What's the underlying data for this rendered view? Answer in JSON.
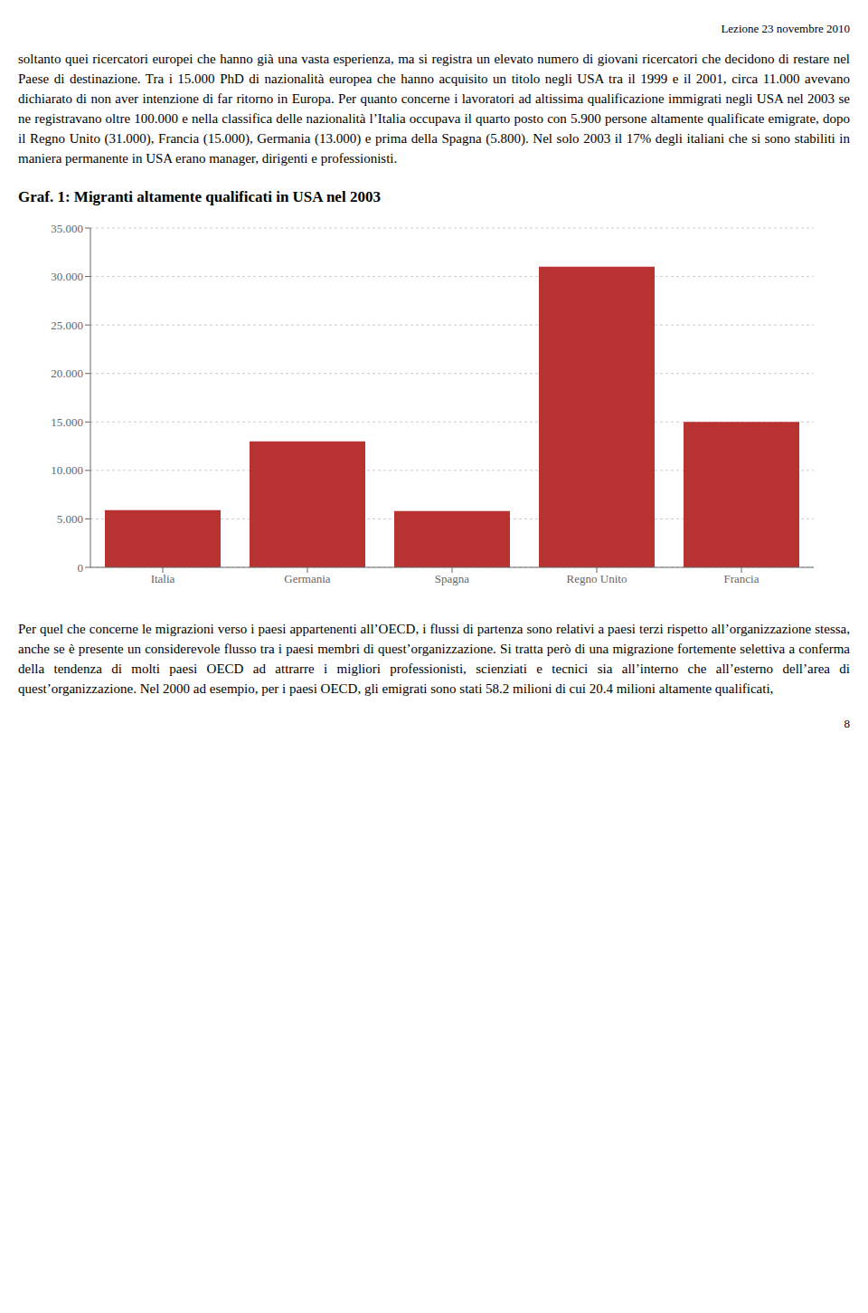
{
  "chart_data": {
    "type": "bar",
    "title": "Graf. 1: Migranti altamente qualificati in USA nel 2003",
    "categories": [
      "Italia",
      "Germania",
      "Spagna",
      "Regno Unito",
      "Francia"
    ],
    "values": [
      5900,
      13000,
      5800,
      31000,
      15000
    ],
    "color": "#b83232",
    "ylim": [
      0,
      35000
    ],
    "yticks": [
      0,
      {
        "value": 5000,
        "label": "5.000"
      },
      {
        "value": 10000,
        "label": "10.000"
      },
      {
        "value": 15000,
        "label": "15.000"
      },
      {
        "value": 20000,
        "label": "20.000"
      },
      {
        "value": 25000,
        "label": "25.000"
      },
      {
        "value": 30000,
        "label": "30.000"
      },
      {
        "value": 35000,
        "label": "35.000"
      }
    ],
    "grid": true,
    "annotations": [
      "Lezione 23 novembre 2010",
      "soltanto quei ricercatori europei che hanno già una vasta esperienza, ma si registra un elevato numero di giovani ricercatori che decidono di restare nel Paese di destinazione. Tra i 15.000 PhD di nazionalità europea che hanno acquisito un titolo negli USA tra il 1999 e il 2001, circa 11.000 avevano dichiarato di non aver intenzione di far ritorno in Europa. Per quanto concerne i lavoratori ad altissima qualificazione immigrati negli USA nel 2003 se ne registravano oltre 100.000 e nella classifica delle nazionalità l’Italia occupava il quarto posto con 5.900 persone altamente qualificate emigrate, dopo il Regno Unito (31.000), Francia (15.000), Germania (13.000) e prima della Spagna (5.800). Nel solo 2003 il 17% degli italiani che si sono stabiliti in maniera permanente in USA erano manager, dirigenti e professionisti.",
      "Per quel che concerne le migrazioni verso i paesi appartenenti all’OECD, i flussi di partenza sono relativi a paesi terzi rispetto all’organizzazione stessa, anche se è presente un considerevole flusso tra i paesi membri di quest’organizzazione. Si tratta però di una migrazione fortemente selettiva a conferma della tendenza di molti paesi OECD ad attrarre i migliori professionisti, scienziati e tecnici sia all’interno che all’esterno dell’area di quest’organizzazione. Nel 2000 ad esempio, per i paesi OECD, gli emigrati sono stati 58.2 milioni di cui 20.4 milioni altamente qualificati,",
      "8"
    ]
  }
}
